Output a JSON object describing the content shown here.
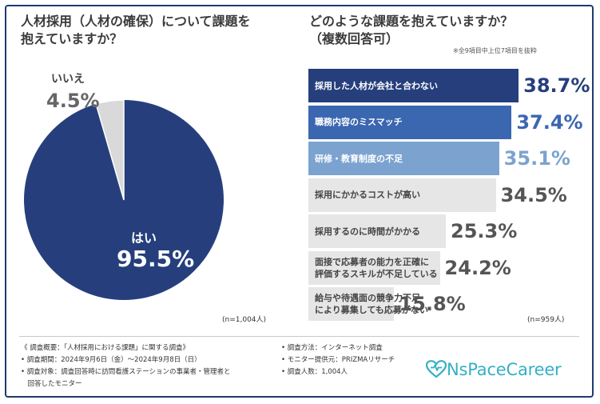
{
  "colors": {
    "frame": "#1f3a70",
    "yes": "#263f7c",
    "no": "#d9d9d9",
    "logo": "#35b0c4"
  },
  "pie_section": {
    "title": "人材採用（人材の確保）について課題を\n抱えていますか？",
    "sample_size": "(n=1,004人)"
  },
  "bar_section": {
    "title": "どのような課題を抱えていますか？\n（複数回答可）",
    "note": "※全9項目中上位7項目を抜粋",
    "sample_size": "(n=959人)"
  },
  "chart_data": [
    {
      "type": "pie",
      "title": "人材採用（人材の確保）について課題を抱えていますか？",
      "slices": [
        {
          "label": "はい",
          "value": 95.5,
          "display": "95.5%",
          "color": "#263f7c"
        },
        {
          "label": "いいえ",
          "value": 4.5,
          "display": "4.5%",
          "color": "#d9d9d9"
        }
      ]
    },
    {
      "type": "bar",
      "orientation": "horizontal",
      "title": "どのような課題を抱えていますか？（複数回答可）",
      "xlim": [
        0,
        100
      ],
      "categories": [
        "採用した人材が会社と合わない",
        "職務内容のミスマッチ",
        "研修・教育制度の不足",
        "採用にかかるコストが高い",
        "採用するのに時間がかかる",
        "面接で応募者の能力を正確に\n評価するスキルが不足している",
        "給与や待遇面の競争力不足\nにより募集しても応募がない"
      ],
      "values": [
        38.7,
        37.4,
        35.1,
        34.5,
        25.3,
        24.2,
        15.8
      ],
      "display_values": [
        "38.7%",
        "37.4%",
        "35.1%",
        "34.5%",
        "25.3%",
        "24.2%",
        "15.8%"
      ],
      "bar_colors": [
        "#263f7c",
        "#3b66b0",
        "#7ca3cf",
        "#e6e6e6",
        "#e6e6e6",
        "#e6e6e6",
        "#e6e6e6"
      ],
      "label_colors": [
        "#ffffff",
        "#ffffff",
        "#ffffff",
        "#444444",
        "#444444",
        "#444444",
        "#444444"
      ],
      "value_colors": [
        "#263f7c",
        "#3b66b0",
        "#7ca3cf",
        "#555555",
        "#555555",
        "#555555",
        "#555555"
      ]
    }
  ],
  "footer": {
    "left": [
      "《 調査概要：「人材採用における課題」に関する調査》",
      "• 調査期間：2024年9月6日（金）〜2024年9月8日（日）",
      "• 調査対象：調査回答時に訪問看護ステーションの事業者・管理者と",
      "　回答したモニター"
    ],
    "right": [
      "• 調査方法：インターネット調査",
      "• モニター提供元：PRIZMAリサーチ",
      "• 調査人数：1,004人"
    ]
  },
  "logo": {
    "text": "NsPaceCareer",
    "icon": "heart-icon"
  }
}
